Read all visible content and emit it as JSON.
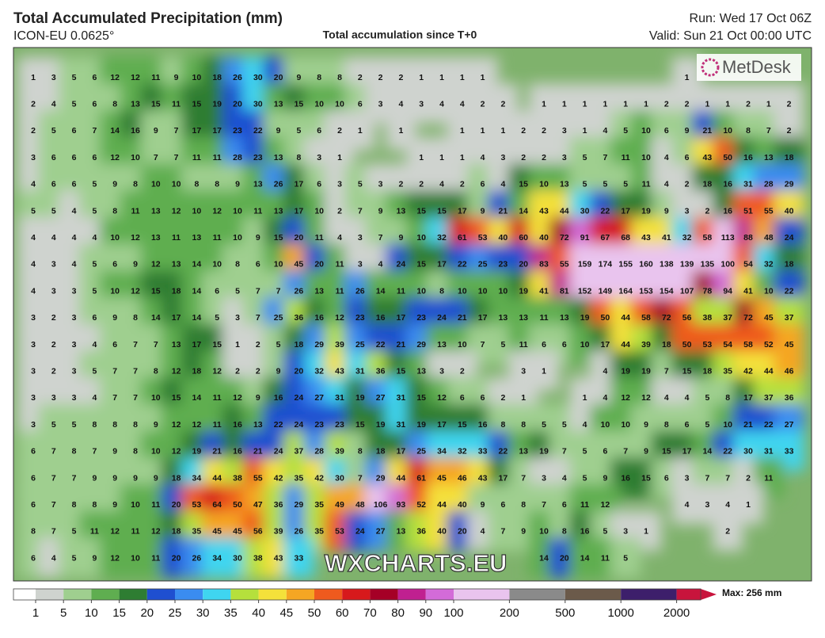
{
  "header": {
    "title": "Total Accumulated Precipitation (mm)",
    "model": "ICON-EU 0.0625°",
    "subtitle": "Total accumulation since T+0",
    "run": "Run: Wed 17 Oct 06Z",
    "valid": "Valid: Sun 21 Oct 00:00 UTC"
  },
  "logo": "MetDesk",
  "watermark": "WXCHARTS.EU",
  "colorbar": {
    "ticks": [
      1,
      5,
      10,
      15,
      20,
      25,
      30,
      35,
      40,
      45,
      50,
      60,
      70,
      80,
      90,
      100,
      200,
      500,
      1000,
      2000
    ],
    "colors": [
      "#ffffff",
      "#cfd3cf",
      "#9fcf8f",
      "#5fae50",
      "#2e7d32",
      "#1f4fd0",
      "#3a8cf0",
      "#3fd5f0",
      "#b5e03c",
      "#f4e13a",
      "#f5a623",
      "#ef5a1e",
      "#d7191c",
      "#a50026",
      "#c02090",
      "#d36bd8",
      "#e9c4ee",
      "#8a8a8a",
      "#6b5a4a",
      "#3d1f6b",
      "#c8143c"
    ],
    "max_label": "Max: 256 mm"
  },
  "grid": {
    "rows": [
      [
        1,
        3,
        5,
        6,
        12,
        12,
        11,
        9,
        10,
        18,
        26,
        30,
        20,
        9,
        8,
        8,
        2,
        2,
        2,
        1,
        1,
        1,
        1,
        null,
        null,
        null,
        null,
        null,
        null,
        null,
        null,
        null,
        1,
        null,
        null,
        null,
        null,
        null
      ],
      [
        2,
        4,
        5,
        6,
        8,
        13,
        15,
        11,
        15,
        19,
        20,
        30,
        13,
        15,
        10,
        10,
        6,
        3,
        4,
        3,
        4,
        4,
        2,
        2,
        null,
        1,
        1,
        1,
        1,
        1,
        1,
        2,
        2,
        1,
        1,
        2,
        1,
        2
      ],
      [
        2,
        5,
        6,
        7,
        14,
        16,
        9,
        7,
        17,
        17,
        23,
        22,
        9,
        5,
        6,
        2,
        1,
        null,
        1,
        null,
        null,
        1,
        1,
        1,
        2,
        2,
        3,
        1,
        4,
        5,
        10,
        6,
        9,
        21,
        10,
        8,
        7,
        2
      ],
      [
        3,
        6,
        6,
        6,
        12,
        10,
        7,
        7,
        11,
        11,
        28,
        23,
        13,
        8,
        3,
        1,
        null,
        null,
        null,
        1,
        1,
        1,
        4,
        3,
        2,
        2,
        3,
        5,
        7,
        11,
        10,
        4,
        6,
        43,
        50,
        16,
        13,
        18
      ],
      [
        4,
        6,
        6,
        5,
        9,
        8,
        10,
        10,
        8,
        8,
        9,
        13,
        26,
        17,
        6,
        3,
        5,
        3,
        2,
        2,
        4,
        2,
        6,
        4,
        15,
        10,
        13,
        5,
        5,
        5,
        11,
        4,
        2,
        18,
        16,
        31,
        28,
        29
      ],
      [
        5,
        5,
        4,
        5,
        8,
        11,
        13,
        12,
        10,
        12,
        10,
        11,
        13,
        17,
        10,
        2,
        7,
        9,
        13,
        15,
        15,
        17,
        9,
        21,
        14,
        43,
        44,
        30,
        22,
        17,
        19,
        9,
        3,
        2,
        16,
        51,
        55,
        40
      ],
      [
        4,
        4,
        4,
        4,
        10,
        12,
        13,
        11,
        13,
        11,
        10,
        9,
        15,
        20,
        11,
        4,
        3,
        7,
        9,
        10,
        32,
        61,
        53,
        40,
        60,
        40,
        72,
        91,
        67,
        68,
        43,
        41,
        32,
        58,
        113,
        88,
        48,
        24
      ],
      [
        4,
        3,
        4,
        5,
        6,
        9,
        12,
        13,
        14,
        10,
        8,
        6,
        10,
        45,
        20,
        11,
        3,
        4,
        24,
        15,
        17,
        22,
        25,
        23,
        20,
        83,
        55,
        159,
        174,
        155,
        160,
        138,
        139,
        135,
        100,
        54,
        32,
        18
      ],
      [
        4,
        3,
        3,
        5,
        10,
        12,
        15,
        18,
        14,
        6,
        5,
        7,
        7,
        26,
        13,
        11,
        26,
        14,
        11,
        10,
        8,
        10,
        10,
        10,
        19,
        41,
        81,
        152,
        149,
        164,
        153,
        154,
        107,
        78,
        94,
        41,
        10,
        22
      ],
      [
        3,
        2,
        3,
        6,
        9,
        8,
        14,
        17,
        14,
        5,
        3,
        7,
        25,
        36,
        16,
        12,
        23,
        16,
        17,
        23,
        24,
        21,
        17,
        13,
        13,
        11,
        13,
        19,
        50,
        44,
        58,
        72,
        56,
        38,
        37,
        72,
        45,
        37
      ],
      [
        3,
        2,
        3,
        4,
        6,
        7,
        7,
        13,
        17,
        15,
        1,
        2,
        5,
        18,
        29,
        39,
        25,
        22,
        21,
        29,
        13,
        10,
        7,
        5,
        11,
        6,
        6,
        10,
        17,
        44,
        39,
        18,
        50,
        53,
        54,
        58,
        52,
        45
      ],
      [
        3,
        2,
        3,
        5,
        7,
        7,
        8,
        12,
        18,
        12,
        2,
        2,
        9,
        20,
        32,
        43,
        31,
        36,
        15,
        13,
        3,
        2,
        null,
        null,
        3,
        1,
        null,
        null,
        4,
        19,
        19,
        7,
        15,
        18,
        35,
        42,
        44,
        46
      ],
      [
        3,
        3,
        3,
        4,
        7,
        7,
        10,
        15,
        14,
        11,
        12,
        9,
        16,
        24,
        27,
        31,
        19,
        27,
        31,
        15,
        12,
        6,
        6,
        2,
        1,
        null,
        null,
        1,
        4,
        12,
        12,
        4,
        4,
        5,
        8,
        17,
        37,
        36
      ],
      [
        3,
        5,
        5,
        8,
        8,
        8,
        9,
        12,
        12,
        11,
        16,
        13,
        22,
        24,
        23,
        23,
        15,
        19,
        31,
        19,
        17,
        15,
        16,
        8,
        8,
        5,
        5,
        4,
        10,
        10,
        9,
        8,
        6,
        5,
        10,
        21,
        22,
        27
      ],
      [
        6,
        7,
        8,
        7,
        9,
        8,
        10,
        12,
        19,
        21,
        16,
        21,
        24,
        37,
        28,
        39,
        8,
        18,
        17,
        25,
        34,
        32,
        33,
        22,
        13,
        19,
        7,
        5,
        6,
        7,
        9,
        15,
        17,
        14,
        22,
        30,
        31,
        33
      ],
      [
        6,
        7,
        7,
        9,
        9,
        9,
        9,
        18,
        34,
        44,
        38,
        55,
        42,
        35,
        42,
        30,
        7,
        29,
        44,
        61,
        45,
        46,
        43,
        17,
        7,
        3,
        4,
        5,
        9,
        16,
        15,
        6,
        3,
        7,
        7,
        2,
        11,
        null
      ],
      [
        6,
        7,
        8,
        8,
        9,
        10,
        11,
        20,
        53,
        64,
        50,
        47,
        36,
        29,
        35,
        49,
        48,
        106,
        93,
        52,
        44,
        40,
        9,
        6,
        8,
        7,
        6,
        11,
        12,
        null,
        null,
        null,
        4,
        3,
        4,
        1,
        null,
        null
      ],
      [
        8,
        7,
        5,
        11,
        12,
        11,
        12,
        18,
        35,
        45,
        45,
        56,
        39,
        26,
        35,
        53,
        24,
        27,
        13,
        36,
        40,
        20,
        4,
        7,
        9,
        10,
        8,
        16,
        5,
        3,
        1,
        null,
        null,
        null,
        2,
        null,
        null,
        null
      ],
      [
        6,
        4,
        5,
        9,
        12,
        10,
        11,
        20,
        26,
        34,
        30,
        38,
        43,
        33,
        null,
        null,
        null,
        null,
        null,
        null,
        null,
        null,
        null,
        null,
        null,
        14,
        20,
        14,
        11,
        5,
        null,
        null,
        null,
        null,
        null,
        null,
        null,
        null
      ]
    ]
  }
}
